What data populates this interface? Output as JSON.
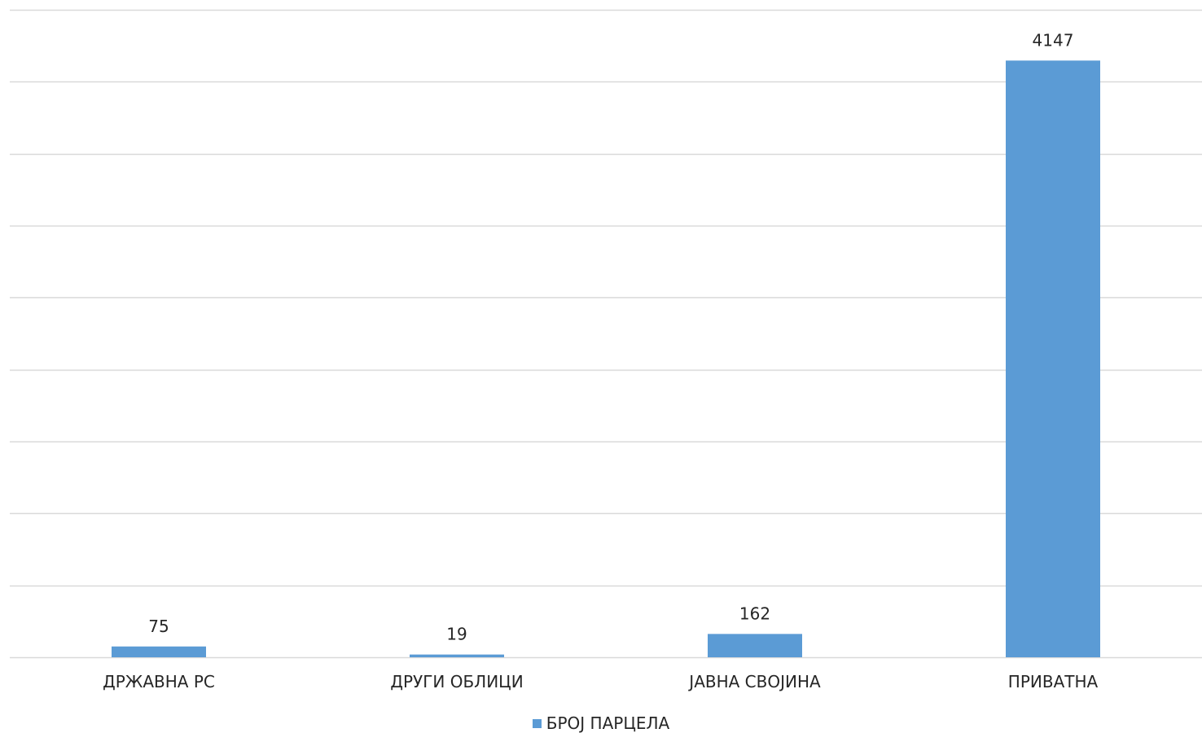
{
  "colors": {
    "bar": "#5b9bd5",
    "grid": "#d9d9d9",
    "text": "#262626"
  },
  "chart_data": {
    "type": "bar",
    "categories": [
      "ДРЖАВНА РС",
      "ДРУГИ ОБЛИЦИ",
      "ЈАВНА СВОЈИНА",
      "ПРИВАТНА"
    ],
    "series": [
      {
        "name": "БРОЈ ПАРЦЕЛА",
        "values": [
          75,
          19,
          162,
          4147
        ]
      }
    ],
    "data_labels": [
      "75",
      "19",
      "162",
      "4147"
    ],
    "ylim": [
      0,
      4500
    ],
    "grid": true,
    "legend_position": "bottom",
    "title": "",
    "xlabel": "",
    "ylabel": ""
  }
}
